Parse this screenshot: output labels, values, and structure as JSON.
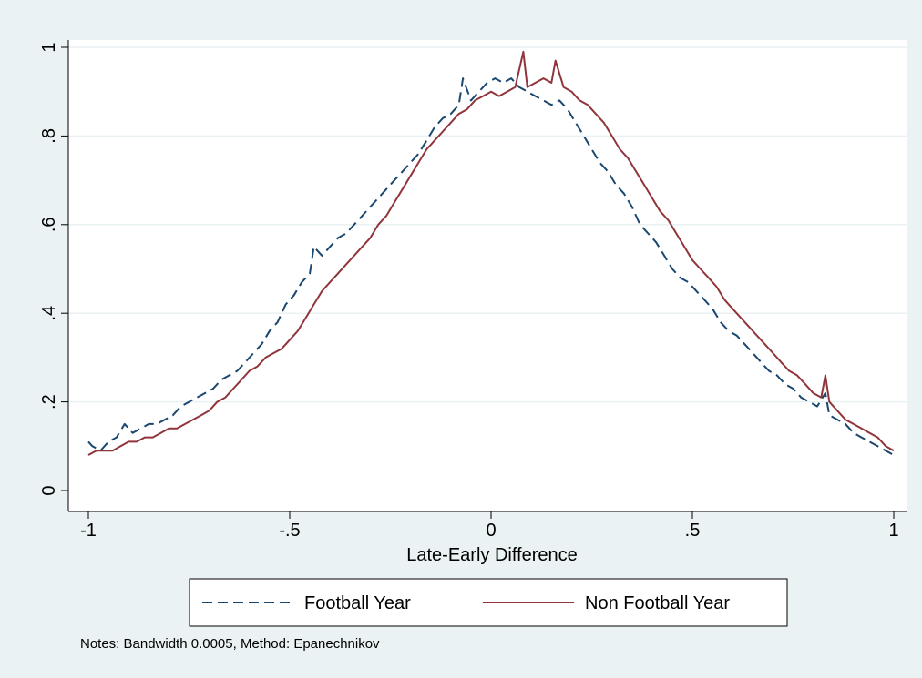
{
  "chart_data": {
    "type": "line",
    "xlabel": "Late-Early Difference",
    "ylabel": "",
    "xlim": [
      -1,
      1
    ],
    "ylim": [
      0,
      1
    ],
    "xticks": [
      -1,
      -0.5,
      0,
      0.5,
      1
    ],
    "xtick_labels": [
      "-1",
      "-.5",
      "0",
      ".5",
      "1"
    ],
    "yticks": [
      0,
      0.2,
      0.4,
      0.6,
      0.8,
      1
    ],
    "ytick_labels": [
      "0",
      ".2",
      ".4",
      ".6",
      ".8",
      "1"
    ],
    "grid": true,
    "legend_position": "bottom",
    "note": "Notes: Bandwidth 0.0005, Method: Epanechnikov",
    "series": [
      {
        "name": "Football Year",
        "color": "#1a476f",
        "style": "dashed",
        "points": [
          [
            -1.0,
            0.11
          ],
          [
            -0.99,
            0.1
          ],
          [
            -0.97,
            0.09
          ],
          [
            -0.95,
            0.11
          ],
          [
            -0.93,
            0.12
          ],
          [
            -0.91,
            0.15
          ],
          [
            -0.89,
            0.13
          ],
          [
            -0.87,
            0.14
          ],
          [
            -0.85,
            0.15
          ],
          [
            -0.83,
            0.15
          ],
          [
            -0.81,
            0.16
          ],
          [
            -0.79,
            0.17
          ],
          [
            -0.77,
            0.19
          ],
          [
            -0.75,
            0.2
          ],
          [
            -0.73,
            0.21
          ],
          [
            -0.71,
            0.22
          ],
          [
            -0.69,
            0.23
          ],
          [
            -0.67,
            0.25
          ],
          [
            -0.65,
            0.26
          ],
          [
            -0.63,
            0.27
          ],
          [
            -0.61,
            0.29
          ],
          [
            -0.59,
            0.31
          ],
          [
            -0.57,
            0.33
          ],
          [
            -0.55,
            0.36
          ],
          [
            -0.53,
            0.38
          ],
          [
            -0.51,
            0.42
          ],
          [
            -0.49,
            0.44
          ],
          [
            -0.47,
            0.47
          ],
          [
            -0.45,
            0.49
          ],
          [
            -0.44,
            0.55
          ],
          [
            -0.42,
            0.53
          ],
          [
            -0.4,
            0.55
          ],
          [
            -0.38,
            0.57
          ],
          [
            -0.36,
            0.58
          ],
          [
            -0.34,
            0.6
          ],
          [
            -0.32,
            0.62
          ],
          [
            -0.3,
            0.64
          ],
          [
            -0.28,
            0.66
          ],
          [
            -0.26,
            0.68
          ],
          [
            -0.24,
            0.7
          ],
          [
            -0.22,
            0.72
          ],
          [
            -0.2,
            0.74
          ],
          [
            -0.18,
            0.76
          ],
          [
            -0.16,
            0.79
          ],
          [
            -0.14,
            0.82
          ],
          [
            -0.12,
            0.84
          ],
          [
            -0.1,
            0.85
          ],
          [
            -0.08,
            0.87
          ],
          [
            -0.07,
            0.93
          ],
          [
            -0.05,
            0.88
          ],
          [
            -0.03,
            0.9
          ],
          [
            -0.01,
            0.92
          ],
          [
            0.01,
            0.93
          ],
          [
            0.03,
            0.92
          ],
          [
            0.05,
            0.93
          ],
          [
            0.07,
            0.91
          ],
          [
            0.09,
            0.9
          ],
          [
            0.11,
            0.89
          ],
          [
            0.13,
            0.88
          ],
          [
            0.15,
            0.87
          ],
          [
            0.17,
            0.88
          ],
          [
            0.19,
            0.86
          ],
          [
            0.21,
            0.83
          ],
          [
            0.23,
            0.8
          ],
          [
            0.25,
            0.77
          ],
          [
            0.27,
            0.74
          ],
          [
            0.29,
            0.72
          ],
          [
            0.31,
            0.69
          ],
          [
            0.33,
            0.67
          ],
          [
            0.35,
            0.64
          ],
          [
            0.37,
            0.6
          ],
          [
            0.39,
            0.58
          ],
          [
            0.41,
            0.56
          ],
          [
            0.43,
            0.53
          ],
          [
            0.45,
            0.5
          ],
          [
            0.47,
            0.48
          ],
          [
            0.49,
            0.47
          ],
          [
            0.51,
            0.45
          ],
          [
            0.53,
            0.43
          ],
          [
            0.55,
            0.41
          ],
          [
            0.57,
            0.38
          ],
          [
            0.59,
            0.36
          ],
          [
            0.61,
            0.35
          ],
          [
            0.63,
            0.33
          ],
          [
            0.65,
            0.31
          ],
          [
            0.67,
            0.29
          ],
          [
            0.69,
            0.27
          ],
          [
            0.71,
            0.26
          ],
          [
            0.73,
            0.24
          ],
          [
            0.75,
            0.23
          ],
          [
            0.77,
            0.21
          ],
          [
            0.79,
            0.2
          ],
          [
            0.81,
            0.19
          ],
          [
            0.83,
            0.22
          ],
          [
            0.84,
            0.17
          ],
          [
            0.86,
            0.16
          ],
          [
            0.88,
            0.15
          ],
          [
            0.9,
            0.13
          ],
          [
            0.92,
            0.12
          ],
          [
            0.94,
            0.11
          ],
          [
            0.96,
            0.1
          ],
          [
            0.98,
            0.09
          ],
          [
            1.0,
            0.08
          ]
        ]
      },
      {
        "name": "Non Football Year",
        "color": "#90353b",
        "style": "solid",
        "points": [
          [
            -1.0,
            0.08
          ],
          [
            -0.98,
            0.09
          ],
          [
            -0.96,
            0.09
          ],
          [
            -0.94,
            0.09
          ],
          [
            -0.92,
            0.1
          ],
          [
            -0.9,
            0.11
          ],
          [
            -0.88,
            0.11
          ],
          [
            -0.86,
            0.12
          ],
          [
            -0.84,
            0.12
          ],
          [
            -0.82,
            0.13
          ],
          [
            -0.8,
            0.14
          ],
          [
            -0.78,
            0.14
          ],
          [
            -0.76,
            0.15
          ],
          [
            -0.74,
            0.16
          ],
          [
            -0.72,
            0.17
          ],
          [
            -0.7,
            0.18
          ],
          [
            -0.68,
            0.2
          ],
          [
            -0.66,
            0.21
          ],
          [
            -0.64,
            0.23
          ],
          [
            -0.62,
            0.25
          ],
          [
            -0.6,
            0.27
          ],
          [
            -0.58,
            0.28
          ],
          [
            -0.56,
            0.3
          ],
          [
            -0.54,
            0.31
          ],
          [
            -0.52,
            0.32
          ],
          [
            -0.5,
            0.34
          ],
          [
            -0.48,
            0.36
          ],
          [
            -0.46,
            0.39
          ],
          [
            -0.44,
            0.42
          ],
          [
            -0.42,
            0.45
          ],
          [
            -0.4,
            0.47
          ],
          [
            -0.38,
            0.49
          ],
          [
            -0.36,
            0.51
          ],
          [
            -0.34,
            0.53
          ],
          [
            -0.32,
            0.55
          ],
          [
            -0.3,
            0.57
          ],
          [
            -0.28,
            0.6
          ],
          [
            -0.26,
            0.62
          ],
          [
            -0.24,
            0.65
          ],
          [
            -0.22,
            0.68
          ],
          [
            -0.2,
            0.71
          ],
          [
            -0.18,
            0.74
          ],
          [
            -0.16,
            0.77
          ],
          [
            -0.14,
            0.79
          ],
          [
            -0.12,
            0.81
          ],
          [
            -0.1,
            0.83
          ],
          [
            -0.08,
            0.85
          ],
          [
            -0.06,
            0.86
          ],
          [
            -0.04,
            0.88
          ],
          [
            -0.02,
            0.89
          ],
          [
            0.0,
            0.9
          ],
          [
            0.02,
            0.89
          ],
          [
            0.04,
            0.9
          ],
          [
            0.06,
            0.91
          ],
          [
            0.08,
            0.99
          ],
          [
            0.09,
            0.91
          ],
          [
            0.11,
            0.92
          ],
          [
            0.13,
            0.93
          ],
          [
            0.15,
            0.92
          ],
          [
            0.16,
            0.97
          ],
          [
            0.18,
            0.91
          ],
          [
            0.2,
            0.9
          ],
          [
            0.22,
            0.88
          ],
          [
            0.24,
            0.87
          ],
          [
            0.26,
            0.85
          ],
          [
            0.28,
            0.83
          ],
          [
            0.3,
            0.8
          ],
          [
            0.32,
            0.77
          ],
          [
            0.34,
            0.75
          ],
          [
            0.36,
            0.72
          ],
          [
            0.38,
            0.69
          ],
          [
            0.4,
            0.66
          ],
          [
            0.42,
            0.63
          ],
          [
            0.44,
            0.61
          ],
          [
            0.46,
            0.58
          ],
          [
            0.48,
            0.55
          ],
          [
            0.5,
            0.52
          ],
          [
            0.52,
            0.5
          ],
          [
            0.54,
            0.48
          ],
          [
            0.56,
            0.46
          ],
          [
            0.58,
            0.43
          ],
          [
            0.6,
            0.41
          ],
          [
            0.62,
            0.39
          ],
          [
            0.64,
            0.37
          ],
          [
            0.66,
            0.35
          ],
          [
            0.68,
            0.33
          ],
          [
            0.7,
            0.31
          ],
          [
            0.72,
            0.29
          ],
          [
            0.74,
            0.27
          ],
          [
            0.76,
            0.26
          ],
          [
            0.78,
            0.24
          ],
          [
            0.8,
            0.22
          ],
          [
            0.82,
            0.21
          ],
          [
            0.83,
            0.26
          ],
          [
            0.84,
            0.2
          ],
          [
            0.86,
            0.18
          ],
          [
            0.88,
            0.16
          ],
          [
            0.9,
            0.15
          ],
          [
            0.92,
            0.14
          ],
          [
            0.94,
            0.13
          ],
          [
            0.96,
            0.12
          ],
          [
            0.98,
            0.1
          ],
          [
            1.0,
            0.09
          ]
        ]
      }
    ]
  }
}
